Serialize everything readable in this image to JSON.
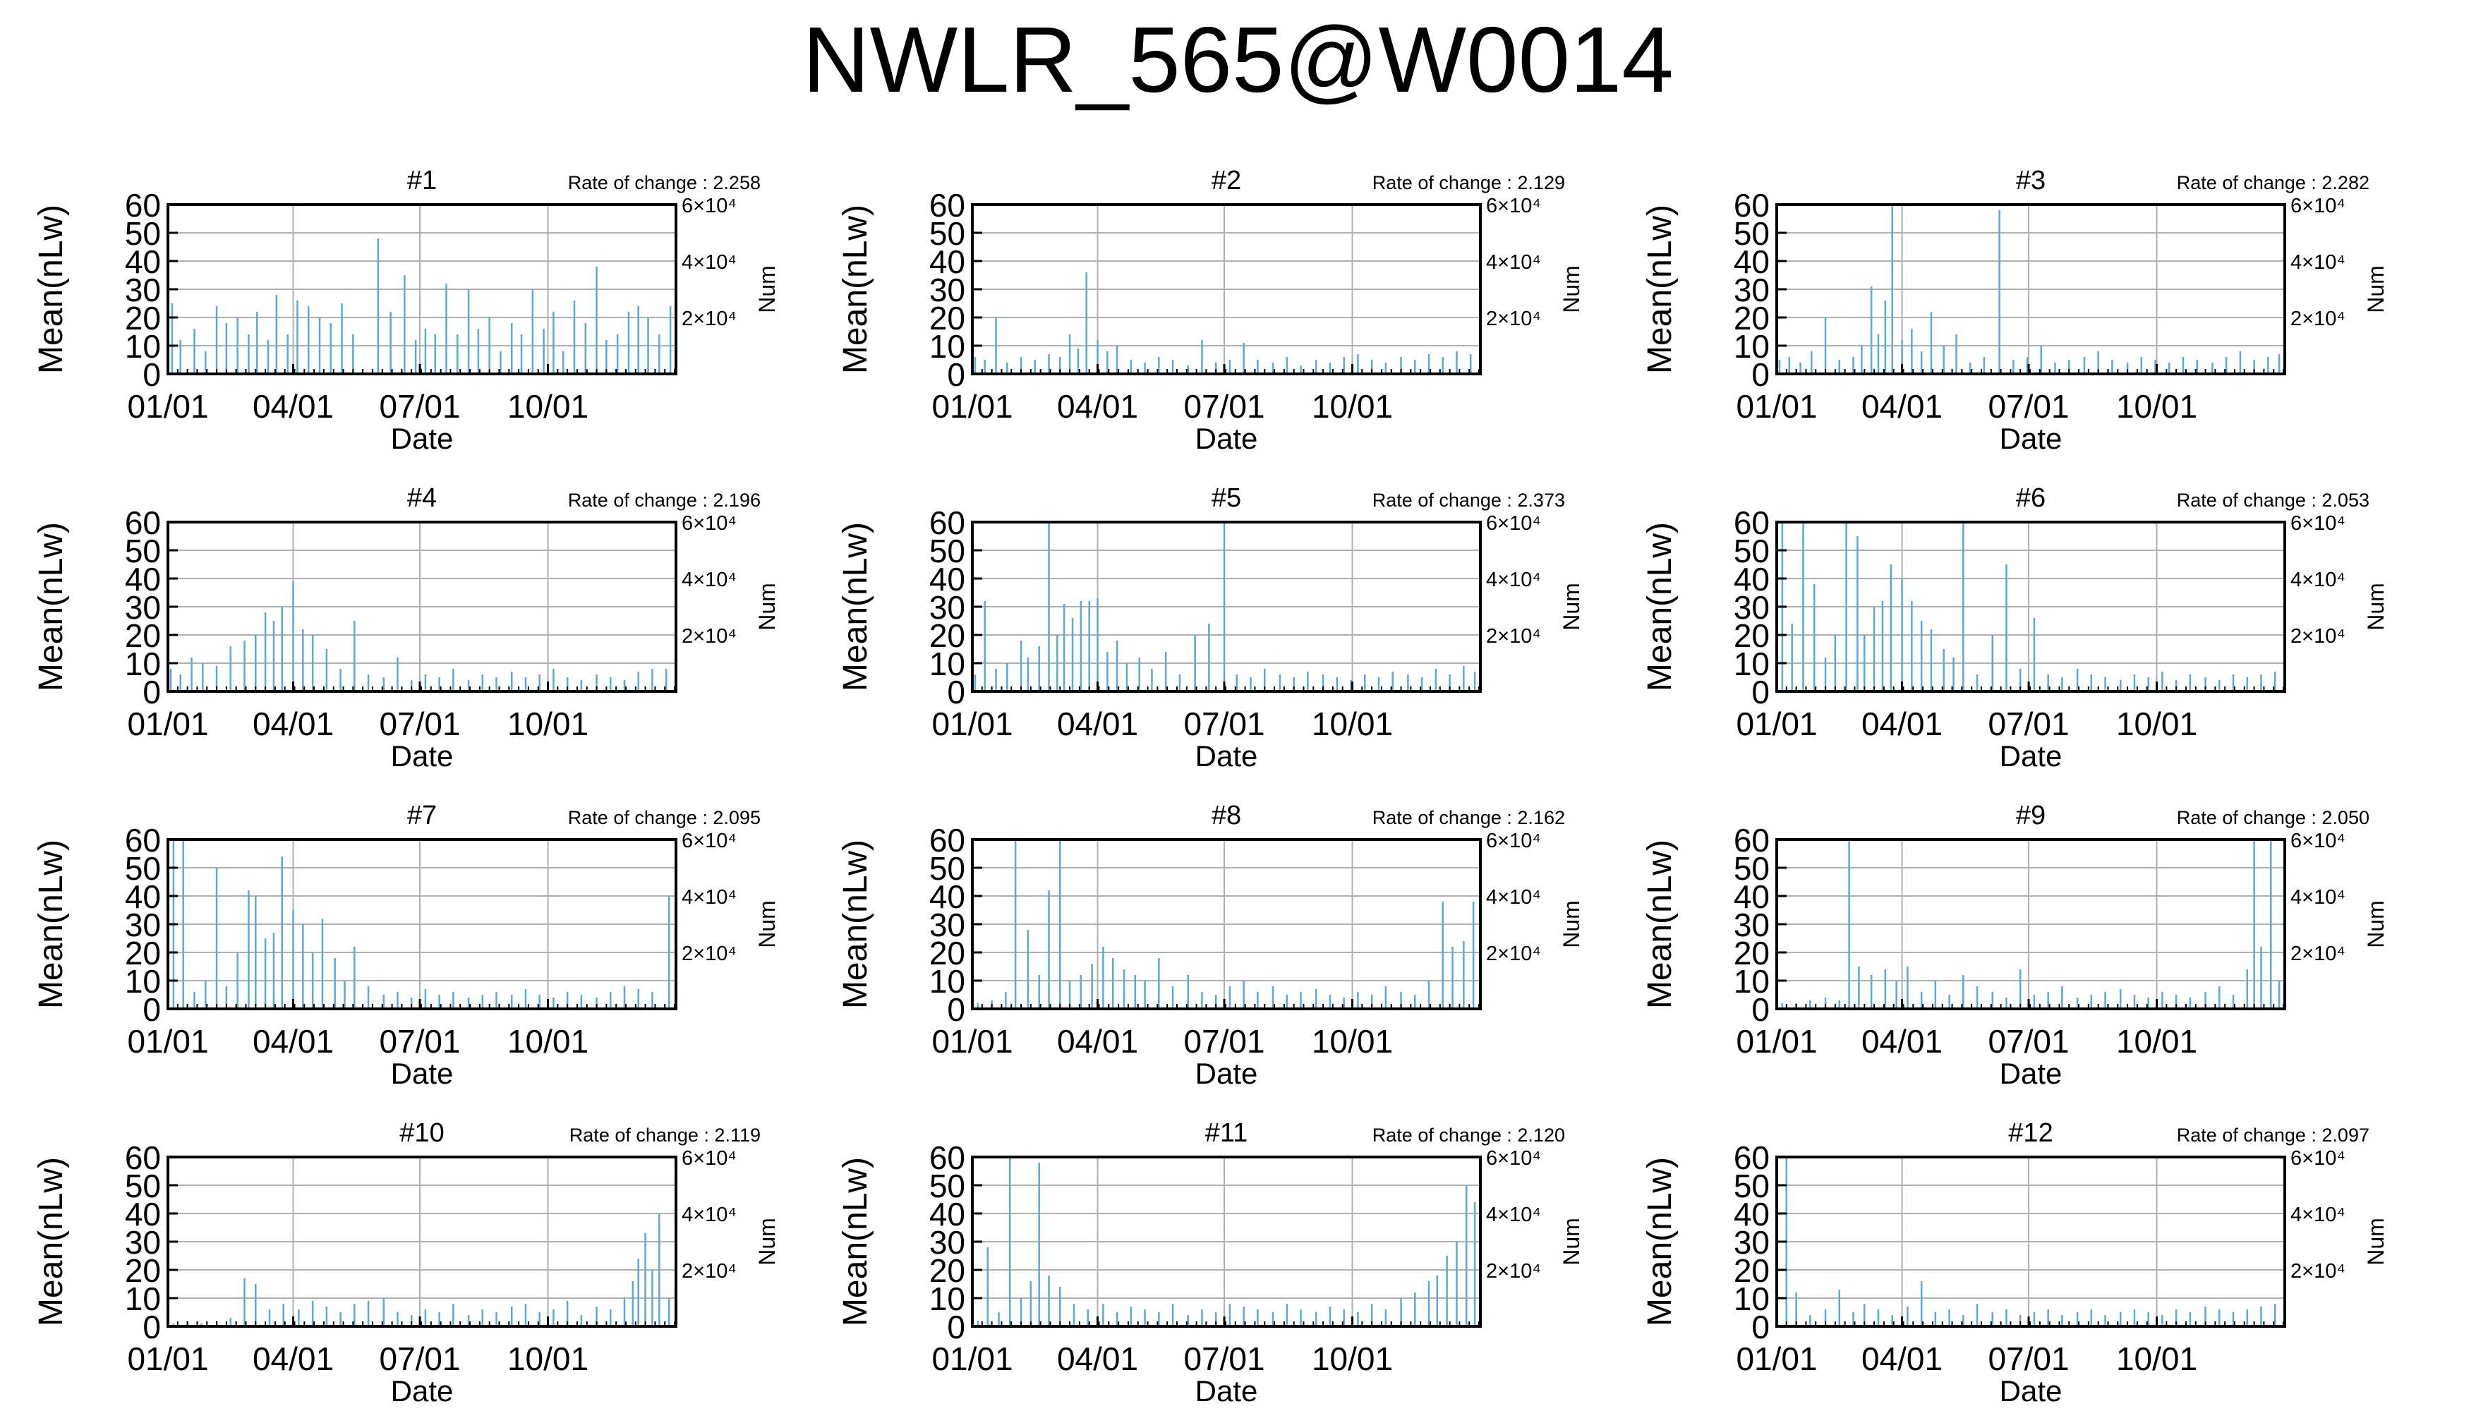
{
  "title": "NWLR_565@W0014",
  "colors": {
    "bar": "#5aa9d6",
    "axis": "#000000",
    "grid": "#b0b0b0"
  },
  "common": {
    "ylabel": "Mean(nLw)",
    "xlabel": "Date",
    "y2label": "Num",
    "ylim": [
      0,
      60
    ],
    "yticks": [
      "0",
      "10",
      "20",
      "30",
      "40",
      "50",
      "60"
    ],
    "xticks": [
      "01/01",
      "04/01",
      "07/01",
      "10/01"
    ],
    "y2ticks": [
      "2×10⁴",
      "4×10⁴",
      "6×10⁴"
    ],
    "rate_prefix": "Rate of change : "
  },
  "chart_data": [
    {
      "type": "bar",
      "title": "#1",
      "rate": "2.258",
      "x": [
        "01/04",
        "01/10",
        "01/20",
        "01/28",
        "02/05",
        "02/12",
        "02/20",
        "02/28",
        "03/06",
        "03/14",
        "03/20",
        "03/28",
        "04/04",
        "04/12",
        "04/20",
        "04/28",
        "05/06",
        "05/14",
        "06/01",
        "06/10",
        "06/20",
        "06/28",
        "07/05",
        "07/12",
        "07/20",
        "07/28",
        "08/05",
        "08/12",
        "08/20",
        "08/28",
        "09/05",
        "09/12",
        "09/20",
        "09/28",
        "10/05",
        "10/12",
        "10/20",
        "10/28",
        "11/05",
        "11/12",
        "11/20",
        "11/28",
        "12/05",
        "12/12",
        "12/20",
        "12/28"
      ],
      "values": [
        25,
        12,
        16,
        8,
        24,
        18,
        20,
        14,
        22,
        12,
        28,
        14,
        26,
        24,
        20,
        18,
        25,
        14,
        48,
        22,
        35,
        12,
        16,
        14,
        32,
        14,
        30,
        16,
        20,
        8,
        18,
        14,
        30,
        16,
        22,
        8,
        26,
        18,
        38,
        12,
        14,
        22,
        24,
        20,
        14,
        24
      ]
    },
    {
      "type": "bar",
      "title": "#2",
      "rate": "2.129",
      "x": [
        "01/03",
        "01/10",
        "01/18",
        "01/26",
        "02/05",
        "02/15",
        "02/25",
        "03/05",
        "03/12",
        "03/18",
        "03/24",
        "04/01",
        "04/08",
        "04/15",
        "04/25",
        "05/05",
        "05/15",
        "05/25",
        "06/05",
        "06/15",
        "06/25",
        "07/05",
        "07/15",
        "07/25",
        "08/05",
        "08/15",
        "08/25",
        "09/05",
        "09/15",
        "09/25",
        "10/05",
        "10/15",
        "10/25",
        "11/05",
        "11/15",
        "11/25",
        "12/05",
        "12/15",
        "12/25"
      ],
      "values": [
        6,
        5,
        20,
        4,
        6,
        5,
        7,
        6,
        14,
        9,
        36,
        12,
        8,
        10,
        5,
        4,
        6,
        5,
        3,
        12,
        4,
        5,
        11,
        5,
        4,
        6,
        3,
        5,
        4,
        6,
        7,
        5,
        4,
        6,
        5,
        7,
        6,
        8,
        7
      ]
    },
    {
      "type": "bar",
      "title": "#3",
      "rate": "2.282",
      "x": [
        "01/03",
        "01/10",
        "01/18",
        "01/26",
        "02/05",
        "02/15",
        "02/25",
        "03/03",
        "03/10",
        "03/15",
        "03/20",
        "03/25",
        "04/01",
        "04/08",
        "04/15",
        "04/22",
        "05/01",
        "05/10",
        "05/20",
        "05/30",
        "06/10",
        "06/20",
        "06/30",
        "07/10",
        "07/20",
        "07/30",
        "08/10",
        "08/20",
        "08/30",
        "09/10",
        "09/20",
        "09/30",
        "10/10",
        "10/20",
        "10/30",
        "11/10",
        "11/20",
        "11/30",
        "12/10",
        "12/20",
        "12/28"
      ],
      "values": [
        5,
        6,
        4,
        8,
        20,
        5,
        6,
        10,
        31,
        14,
        26,
        60,
        12,
        16,
        8,
        22,
        10,
        14,
        4,
        6,
        58,
        5,
        6,
        10,
        4,
        5,
        6,
        8,
        5,
        4,
        6,
        5,
        4,
        6,
        5,
        4,
        6,
        8,
        5,
        6,
        7
      ]
    },
    {
      "type": "bar",
      "title": "#4",
      "rate": "2.196",
      "x": [
        "01/03",
        "01/10",
        "01/18",
        "01/26",
        "02/05",
        "02/15",
        "02/25",
        "03/05",
        "03/12",
        "03/18",
        "03/24",
        "04/01",
        "04/08",
        "04/15",
        "04/25",
        "05/05",
        "05/15",
        "05/25",
        "06/05",
        "06/15",
        "06/25",
        "07/05",
        "07/15",
        "07/25",
        "08/05",
        "08/15",
        "08/25",
        "09/05",
        "09/15",
        "09/25",
        "10/05",
        "10/15",
        "10/25",
        "11/05",
        "11/15",
        "11/25",
        "12/05",
        "12/15",
        "12/25"
      ],
      "values": [
        8,
        6,
        12,
        10,
        9,
        16,
        18,
        20,
        28,
        25,
        30,
        39,
        22,
        20,
        15,
        8,
        25,
        6,
        5,
        12,
        4,
        6,
        5,
        8,
        4,
        6,
        5,
        7,
        5,
        6,
        8,
        5,
        4,
        6,
        5,
        4,
        7,
        8,
        8
      ]
    },
    {
      "type": "bar",
      "title": "#5",
      "rate": "2.373",
      "x": [
        "01/03",
        "01/10",
        "01/18",
        "01/26",
        "02/05",
        "02/10",
        "02/18",
        "02/25",
        "03/03",
        "03/08",
        "03/14",
        "03/20",
        "03/26",
        "04/01",
        "04/08",
        "04/15",
        "04/22",
        "05/01",
        "05/10",
        "05/20",
        "05/30",
        "06/10",
        "06/20",
        "07/01",
        "07/10",
        "07/20",
        "07/30",
        "08/10",
        "08/20",
        "08/30",
        "09/10",
        "09/20",
        "09/30",
        "10/10",
        "10/20",
        "10/30",
        "11/10",
        "11/20",
        "11/30",
        "12/10",
        "12/20",
        "12/28"
      ],
      "values": [
        6,
        32,
        8,
        10,
        18,
        12,
        16,
        60,
        20,
        31,
        26,
        32,
        32,
        33,
        14,
        18,
        10,
        12,
        8,
        14,
        6,
        20,
        24,
        60,
        6,
        5,
        8,
        6,
        5,
        7,
        6,
        5,
        4,
        6,
        5,
        7,
        6,
        5,
        8,
        6,
        9,
        7
      ]
    },
    {
      "type": "bar",
      "title": "#6",
      "rate": "2.053",
      "x": [
        "01/05",
        "01/12",
        "01/20",
        "01/28",
        "02/05",
        "02/12",
        "02/20",
        "02/28",
        "03/05",
        "03/12",
        "03/18",
        "03/24",
        "04/01",
        "04/08",
        "04/15",
        "04/22",
        "05/01",
        "05/08",
        "05/15",
        "05/25",
        "06/05",
        "06/15",
        "06/25",
        "07/05",
        "07/15",
        "07/25",
        "08/05",
        "08/15",
        "08/25",
        "09/05",
        "09/15",
        "09/25",
        "10/05",
        "10/15",
        "10/25",
        "11/05",
        "11/15",
        "11/25",
        "12/05",
        "12/15",
        "12/25"
      ],
      "values": [
        60,
        24,
        60,
        38,
        12,
        20,
        60,
        55,
        20,
        30,
        32,
        45,
        40,
        32,
        25,
        22,
        15,
        12,
        60,
        6,
        20,
        45,
        8,
        26,
        6,
        5,
        8,
        6,
        5,
        4,
        6,
        5,
        7,
        4,
        6,
        5,
        4,
        6,
        5,
        6,
        7
      ]
    },
    {
      "type": "bar",
      "title": "#7",
      "rate": "2.095",
      "x": [
        "01/05",
        "01/12",
        "01/20",
        "01/28",
        "02/05",
        "02/12",
        "02/20",
        "02/28",
        "03/05",
        "03/12",
        "03/18",
        "03/24",
        "04/01",
        "04/08",
        "04/15",
        "04/22",
        "05/01",
        "05/08",
        "05/15",
        "05/25",
        "06/05",
        "06/15",
        "06/25",
        "07/05",
        "07/15",
        "07/25",
        "08/05",
        "08/15",
        "08/25",
        "09/05",
        "09/15",
        "09/25",
        "10/05",
        "10/15",
        "10/25",
        "11/05",
        "11/15",
        "11/25",
        "12/05",
        "12/15",
        "12/27"
      ],
      "values": [
        60,
        60,
        6,
        10,
        50,
        8,
        20,
        42,
        40,
        25,
        27,
        54,
        35,
        30,
        20,
        32,
        18,
        10,
        22,
        8,
        5,
        6,
        4,
        7,
        5,
        6,
        4,
        5,
        6,
        5,
        7,
        5,
        4,
        6,
        5,
        4,
        6,
        8,
        7,
        6,
        40
      ]
    },
    {
      "type": "bar",
      "title": "#8",
      "rate": "2.162",
      "x": [
        "01/05",
        "01/15",
        "01/25",
        "02/01",
        "02/10",
        "02/18",
        "02/25",
        "03/05",
        "03/12",
        "03/20",
        "03/28",
        "04/05",
        "04/12",
        "04/20",
        "04/28",
        "05/05",
        "05/15",
        "05/25",
        "06/05",
        "06/15",
        "06/25",
        "07/05",
        "07/15",
        "07/25",
        "08/05",
        "08/15",
        "08/25",
        "09/05",
        "09/15",
        "09/25",
        "10/05",
        "10/15",
        "10/25",
        "11/05",
        "11/15",
        "11/25",
        "12/05",
        "12/12",
        "12/20",
        "12/27"
      ],
      "values": [
        2,
        3,
        6,
        60,
        28,
        12,
        42,
        60,
        10,
        12,
        16,
        22,
        18,
        14,
        12,
        10,
        18,
        8,
        12,
        6,
        5,
        8,
        10,
        6,
        8,
        5,
        6,
        7,
        5,
        4,
        6,
        5,
        8,
        6,
        5,
        10,
        38,
        22,
        24,
        38
      ]
    },
    {
      "type": "bar",
      "title": "#9",
      "rate": "2.050",
      "x": [
        "01/05",
        "01/15",
        "01/25",
        "02/05",
        "02/15",
        "02/22",
        "03/01",
        "03/10",
        "03/20",
        "03/28",
        "04/05",
        "04/15",
        "04/25",
        "05/05",
        "05/15",
        "05/25",
        "06/05",
        "06/15",
        "06/25",
        "07/05",
        "07/15",
        "07/25",
        "08/05",
        "08/15",
        "08/25",
        "09/05",
        "09/15",
        "09/25",
        "10/05",
        "10/15",
        "10/25",
        "11/05",
        "11/15",
        "11/25",
        "12/05",
        "12/10",
        "12/15",
        "12/22",
        "12/28"
      ],
      "values": [
        2,
        2,
        3,
        4,
        3,
        60,
        15,
        12,
        14,
        10,
        15,
        6,
        10,
        5,
        12,
        8,
        6,
        4,
        14,
        5,
        6,
        8,
        4,
        5,
        6,
        7,
        5,
        4,
        6,
        5,
        4,
        6,
        8,
        5,
        14,
        60,
        22,
        60,
        10
      ]
    },
    {
      "type": "bar",
      "title": "#10",
      "rate": "2.119",
      "x": [
        "01/05",
        "01/15",
        "01/25",
        "02/05",
        "02/15",
        "02/25",
        "03/05",
        "03/15",
        "03/25",
        "04/05",
        "04/15",
        "04/25",
        "05/05",
        "05/15",
        "05/25",
        "06/05",
        "06/15",
        "06/25",
        "07/05",
        "07/15",
        "07/25",
        "08/05",
        "08/15",
        "08/25",
        "09/05",
        "09/15",
        "09/25",
        "10/05",
        "10/15",
        "10/25",
        "11/05",
        "11/15",
        "11/25",
        "12/01",
        "12/05",
        "12/10",
        "12/15",
        "12/20",
        "12/27"
      ],
      "values": [
        1,
        2,
        1,
        2,
        3,
        17,
        15,
        6,
        8,
        6,
        9,
        7,
        5,
        8,
        9,
        10,
        5,
        4,
        6,
        5,
        8,
        4,
        6,
        5,
        7,
        8,
        5,
        6,
        9,
        4,
        7,
        6,
        10,
        16,
        24,
        33,
        20,
        40,
        10
      ]
    },
    {
      "type": "bar",
      "title": "#11",
      "rate": "2.120",
      "x": [
        "01/05",
        "01/12",
        "01/20",
        "01/28",
        "02/05",
        "02/12",
        "02/18",
        "02/25",
        "03/05",
        "03/15",
        "03/25",
        "04/05",
        "04/15",
        "04/25",
        "05/05",
        "05/15",
        "05/25",
        "06/05",
        "06/15",
        "06/25",
        "07/05",
        "07/15",
        "07/25",
        "08/05",
        "08/15",
        "08/25",
        "09/05",
        "09/15",
        "09/25",
        "10/05",
        "10/15",
        "10/25",
        "11/05",
        "11/15",
        "11/25",
        "12/01",
        "12/08",
        "12/15",
        "12/22",
        "12/28"
      ],
      "values": [
        2,
        28,
        5,
        60,
        10,
        16,
        58,
        18,
        14,
        8,
        6,
        8,
        5,
        7,
        6,
        5,
        8,
        4,
        6,
        5,
        8,
        7,
        6,
        5,
        8,
        6,
        5,
        7,
        6,
        5,
        8,
        6,
        10,
        12,
        16,
        18,
        25,
        30,
        50,
        44
      ]
    },
    {
      "type": "bar",
      "title": "#12",
      "rate": "2.097",
      "x": [
        "01/08",
        "01/15",
        "01/25",
        "02/05",
        "02/15",
        "02/25",
        "03/05",
        "03/15",
        "03/25",
        "04/05",
        "04/15",
        "04/25",
        "05/05",
        "05/15",
        "05/25",
        "06/05",
        "06/15",
        "06/25",
        "07/05",
        "07/15",
        "07/25",
        "08/05",
        "08/15",
        "08/25",
        "09/05",
        "09/15",
        "09/25",
        "10/05",
        "10/15",
        "10/25",
        "11/05",
        "11/15",
        "11/25",
        "12/05",
        "12/15",
        "12/25"
      ],
      "values": [
        60,
        12,
        4,
        6,
        13,
        5,
        8,
        6,
        4,
        7,
        16,
        5,
        6,
        4,
        8,
        5,
        6,
        4,
        5,
        6,
        4,
        5,
        6,
        4,
        5,
        6,
        5,
        4,
        6,
        5,
        7,
        6,
        5,
        6,
        7,
        8
      ]
    }
  ]
}
